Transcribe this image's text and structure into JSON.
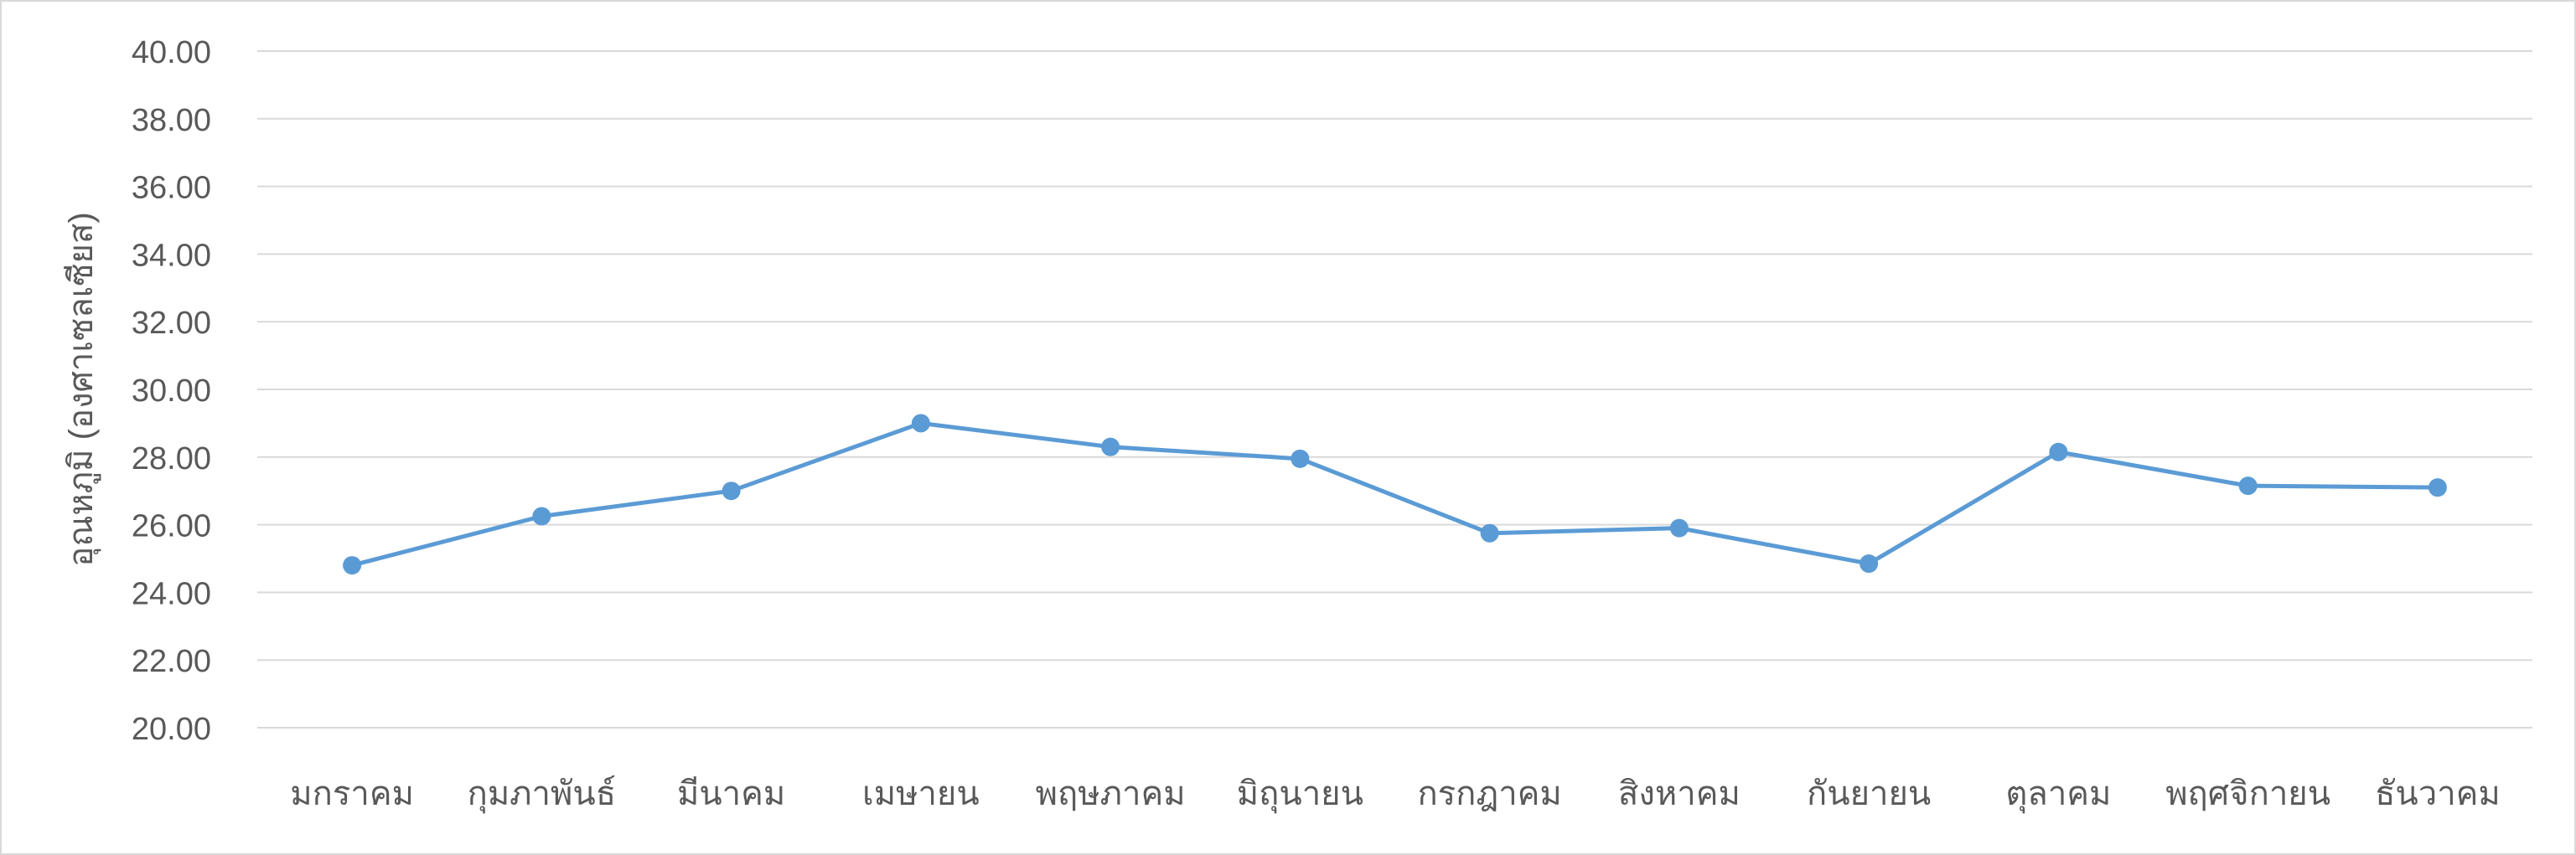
{
  "chart_data": {
    "type": "line",
    "title": "",
    "xlabel": "",
    "ylabel": "อุณหภูมิ (องศาเซลเซียส)",
    "categories": [
      "มกราคม",
      "กุมภาพันธ์",
      "มีนาคม",
      "เมษายน",
      "พฤษภาคม",
      "มิถุนายน",
      "กรกฎาคม",
      "สิงหาคม",
      "กันยายน",
      "ตุลาคม",
      "พฤศจิกายน",
      "ธันวาคม"
    ],
    "series": [
      {
        "values": [
          24.8,
          26.25,
          27.0,
          29.0,
          28.3,
          27.95,
          25.75,
          25.9,
          24.85,
          28.15,
          27.15,
          27.1
        ]
      }
    ],
    "ylim": [
      20,
      40
    ],
    "yticks": [
      "20.00",
      "22.00",
      "24.00",
      "26.00",
      "28.00",
      "30.00",
      "32.00",
      "34.00",
      "36.00",
      "38.00",
      "40.00"
    ],
    "grid": true,
    "legend": "none",
    "colors": {
      "line": "#5B9BD5",
      "grid": "#d9d9d9",
      "text": "#595959"
    }
  }
}
